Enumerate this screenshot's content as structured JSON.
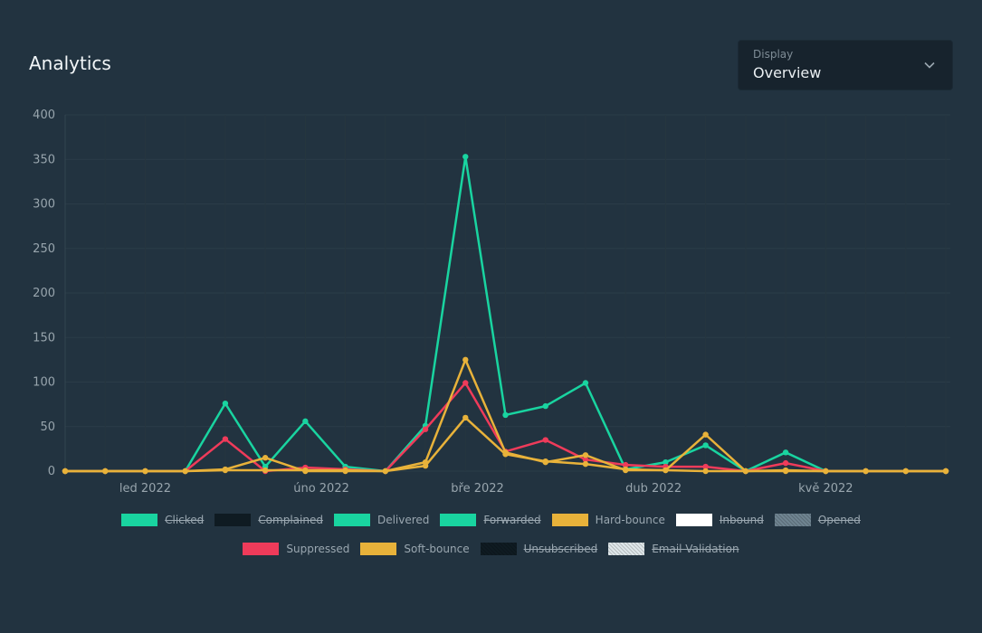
{
  "title": "Analytics",
  "display": {
    "label": "Display",
    "value": "Overview"
  },
  "chart_data": {
    "type": "line",
    "y_ticks": [
      "0",
      "50",
      "100",
      "150",
      "200",
      "250",
      "300",
      "350",
      "400"
    ],
    "ylim": [
      0,
      400
    ],
    "x_ticks": [
      {
        "label": "led 2022",
        "index": 2
      },
      {
        "label": "úno 2022",
        "index": 6.4
      },
      {
        "label": "bře 2022",
        "index": 10.3
      },
      {
        "label": "dub 2022",
        "index": 14.7
      },
      {
        "label": "kvě 2022",
        "index": 19
      }
    ],
    "point_count": 23,
    "grid": true,
    "series": [
      {
        "name": "Delivered",
        "color": "#19d4a0",
        "values": [
          0,
          0,
          0,
          0,
          76,
          5,
          56,
          5,
          0,
          51,
          353,
          63,
          73,
          99,
          2,
          10,
          29,
          0,
          21,
          0,
          0,
          0,
          0
        ]
      },
      {
        "name": "Suppressed",
        "color": "#ef3b5a",
        "values": [
          0,
          0,
          0,
          0,
          36,
          0,
          4,
          2,
          0,
          47,
          99,
          22,
          35,
          13,
          7,
          5,
          5,
          0,
          9,
          0,
          0,
          0,
          0
        ]
      },
      {
        "name": "Soft-bounce",
        "color": "#e8b23a",
        "values": [
          0,
          0,
          0,
          0,
          1,
          1,
          1,
          1,
          0,
          6,
          60,
          19,
          11,
          8,
          2,
          1,
          0,
          0,
          0,
          0,
          0,
          0,
          0
        ]
      },
      {
        "name": "Hard-bounce",
        "color": "#e8b23a",
        "values": [
          0,
          0,
          0,
          0,
          2,
          15,
          0,
          0,
          0,
          10,
          125,
          21,
          10,
          18,
          1,
          1,
          41,
          0,
          1,
          0,
          0,
          0,
          0
        ]
      }
    ]
  },
  "legend": {
    "row1": [
      {
        "label": "Clicked",
        "color": "#19d4a0",
        "hidden": true
      },
      {
        "label": "Complained",
        "color": "#0f1b22",
        "hidden": true
      },
      {
        "label": "Delivered",
        "color": "#19d4a0",
        "hidden": false
      },
      {
        "label": "Forwarded",
        "color": "#19d4a0",
        "hidden": true
      },
      {
        "label": "Hard-bounce",
        "color": "#e8b23a",
        "hidden": false
      },
      {
        "label": "Inbound",
        "color": "#ffffff",
        "hidden": true
      },
      {
        "label": "Opened",
        "color": "#6f8491",
        "hidden": true
      }
    ],
    "row2": [
      {
        "label": "Suppressed",
        "color": "#ef3b5a",
        "hidden": false
      },
      {
        "label": "Soft-bounce",
        "color": "#e8b23a",
        "hidden": false
      },
      {
        "label": "Unsubscribed",
        "color": "#0f1b22",
        "hidden": true
      },
      {
        "label": "Email Validation",
        "color": "#dfe7ea",
        "hidden": true
      }
    ]
  }
}
